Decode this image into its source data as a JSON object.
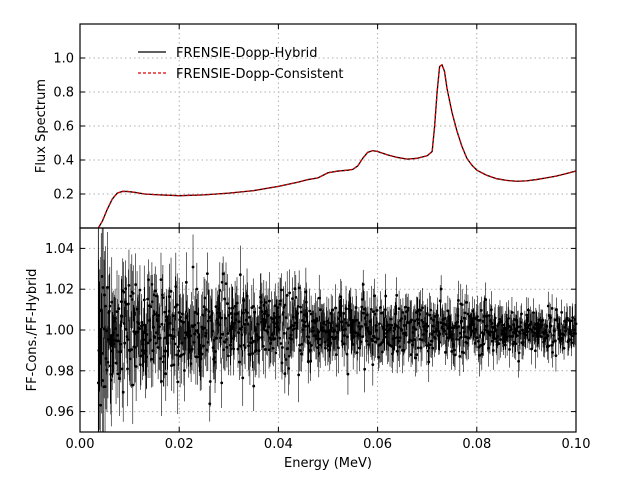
{
  "chart_data": [
    {
      "type": "line",
      "panel": "top",
      "ylabel": "Flux Spectrum",
      "xlim": [
        0.0,
        0.1
      ],
      "ylim": [
        0.0,
        1.2
      ],
      "yticks": [
        "0.2",
        "0.4",
        "0.6",
        "0.8",
        "1.0"
      ],
      "grid": true,
      "legend_position": "upper-left",
      "series": [
        {
          "name": "FRENSIE-Dopp-Hybrid",
          "color": "#000000",
          "linestyle": "solid",
          "x": [
            0.0037,
            0.0045,
            0.0055,
            0.0065,
            0.0075,
            0.0085,
            0.0095,
            0.011,
            0.013,
            0.016,
            0.02,
            0.025,
            0.03,
            0.035,
            0.04,
            0.044,
            0.046,
            0.048,
            0.05,
            0.052,
            0.054,
            0.055,
            0.056,
            0.057,
            0.058,
            0.059,
            0.06,
            0.062,
            0.064,
            0.066,
            0.068,
            0.07,
            0.071,
            0.0715,
            0.072,
            0.0725,
            0.073,
            0.0735,
            0.074,
            0.075,
            0.076,
            0.077,
            0.078,
            0.079,
            0.08,
            0.082,
            0.084,
            0.086,
            0.088,
            0.09,
            0.092,
            0.094,
            0.096,
            0.098,
            0.1
          ],
          "y": [
            0.0,
            0.04,
            0.11,
            0.17,
            0.205,
            0.215,
            0.215,
            0.21,
            0.2,
            0.195,
            0.19,
            0.195,
            0.205,
            0.22,
            0.245,
            0.27,
            0.285,
            0.295,
            0.325,
            0.335,
            0.34,
            0.345,
            0.365,
            0.41,
            0.445,
            0.455,
            0.45,
            0.43,
            0.415,
            0.405,
            0.41,
            0.425,
            0.45,
            0.6,
            0.8,
            0.95,
            0.96,
            0.92,
            0.82,
            0.68,
            0.57,
            0.48,
            0.41,
            0.37,
            0.34,
            0.31,
            0.29,
            0.28,
            0.275,
            0.277,
            0.285,
            0.295,
            0.305,
            0.32,
            0.335
          ]
        },
        {
          "name": "FRENSIE-Dopp-Consistent",
          "color": "#dd0000",
          "linestyle": "dashed",
          "x": [
            0.0037,
            0.0045,
            0.0055,
            0.0065,
            0.0075,
            0.0085,
            0.0095,
            0.011,
            0.013,
            0.016,
            0.02,
            0.025,
            0.03,
            0.035,
            0.04,
            0.044,
            0.046,
            0.048,
            0.05,
            0.052,
            0.054,
            0.055,
            0.056,
            0.057,
            0.058,
            0.059,
            0.06,
            0.062,
            0.064,
            0.066,
            0.068,
            0.07,
            0.071,
            0.0715,
            0.072,
            0.0725,
            0.073,
            0.0735,
            0.074,
            0.075,
            0.076,
            0.077,
            0.078,
            0.079,
            0.08,
            0.082,
            0.084,
            0.086,
            0.088,
            0.09,
            0.092,
            0.094,
            0.096,
            0.098,
            0.1
          ],
          "y": [
            0.0,
            0.04,
            0.11,
            0.17,
            0.205,
            0.215,
            0.215,
            0.21,
            0.2,
            0.195,
            0.19,
            0.195,
            0.205,
            0.22,
            0.245,
            0.27,
            0.285,
            0.295,
            0.325,
            0.335,
            0.34,
            0.345,
            0.365,
            0.41,
            0.445,
            0.455,
            0.45,
            0.43,
            0.415,
            0.405,
            0.41,
            0.425,
            0.45,
            0.6,
            0.8,
            0.95,
            0.96,
            0.92,
            0.82,
            0.68,
            0.57,
            0.48,
            0.41,
            0.37,
            0.34,
            0.31,
            0.29,
            0.28,
            0.275,
            0.277,
            0.285,
            0.295,
            0.305,
            0.32,
            0.335
          ]
        }
      ]
    },
    {
      "type": "scatter",
      "panel": "bottom",
      "xlabel": "Energy (MeV)",
      "ylabel": "FF-Cons./FF-Hybrid",
      "xlim": [
        0.0,
        0.1
      ],
      "ylim": [
        0.95,
        1.05
      ],
      "xticks": [
        "0.00",
        "0.02",
        "0.04",
        "0.06",
        "0.08",
        "0.10"
      ],
      "yticks": [
        "0.96",
        "0.98",
        "1.00",
        "1.02",
        "1.04"
      ],
      "grid": true,
      "errorbars": true,
      "x_start": 0.0037,
      "x_end": 0.1,
      "n_points": 1000,
      "noise_envelope": {
        "x": [
          0.0037,
          0.006,
          0.01,
          0.02,
          0.04,
          0.06,
          0.08,
          0.1
        ],
        "scatter_sd": [
          0.025,
          0.014,
          0.012,
          0.011,
          0.009,
          0.007,
          0.006,
          0.0045
        ],
        "errorbar_half": [
          0.035,
          0.018,
          0.015,
          0.013,
          0.011,
          0.009,
          0.008,
          0.006
        ]
      },
      "center": 1.0
    }
  ]
}
